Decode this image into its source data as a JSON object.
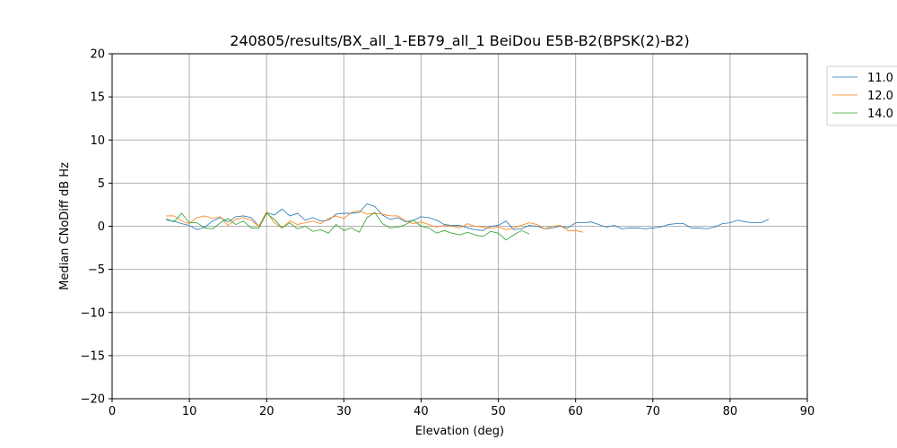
{
  "chart_data": {
    "type": "line",
    "title": "240805/results/BX_all_1-EB79_all_1 BeiDou E5B-B2(BPSK(2)-B2)",
    "xlabel": "Elevation (deg)",
    "ylabel": "Median CNoDiff dB Hz",
    "xlim": [
      0,
      90
    ],
    "ylim": [
      -20,
      20
    ],
    "xticks": [
      0,
      10,
      20,
      30,
      40,
      50,
      60,
      70,
      80,
      90
    ],
    "yticks": [
      -20,
      -15,
      -10,
      -5,
      0,
      5,
      10,
      15,
      20
    ],
    "grid": true,
    "legend_position": "outside-top-right",
    "series": [
      {
        "name": "11.0",
        "color": "#1f77b4",
        "x": [
          7,
          8,
          9,
          10,
          11,
          12,
          13,
          14,
          15,
          16,
          17,
          18,
          19,
          20,
          21,
          22,
          23,
          24,
          25,
          26,
          27,
          28,
          29,
          30,
          31,
          32,
          33,
          34,
          35,
          36,
          37,
          38,
          39,
          40,
          41,
          42,
          43,
          44,
          45,
          46,
          47,
          48,
          49,
          50,
          51,
          52,
          53,
          54,
          55,
          56,
          57,
          58,
          59,
          60,
          61,
          62,
          63,
          64,
          65,
          66,
          67,
          68,
          69,
          70,
          71,
          72,
          73,
          74,
          75,
          76,
          77,
          78,
          79,
          80,
          81,
          82,
          83,
          84,
          85
        ],
        "y": [
          0.7,
          0.6,
          0.3,
          0.1,
          -0.4,
          -0.1,
          0.6,
          1.0,
          0.5,
          1.1,
          1.2,
          1.0,
          0.0,
          1.6,
          1.3,
          2.0,
          1.2,
          1.5,
          0.7,
          1.0,
          0.6,
          0.7,
          1.4,
          1.5,
          1.5,
          1.6,
          2.6,
          2.3,
          1.3,
          0.8,
          1.0,
          0.5,
          0.7,
          1.1,
          1.0,
          0.7,
          0.2,
          0.1,
          0.1,
          -0.2,
          -0.4,
          -0.5,
          0.0,
          0.1,
          0.6,
          -0.4,
          -0.3,
          0.1,
          0.0,
          -0.3,
          -0.2,
          0.0,
          -0.2,
          0.4,
          0.4,
          0.5,
          0.2,
          -0.1,
          0.1,
          -0.3,
          -0.2,
          -0.2,
          -0.3,
          -0.2,
          -0.1,
          0.2,
          0.3,
          0.3,
          -0.2,
          -0.2,
          -0.3,
          -0.1,
          0.3,
          0.4,
          0.7,
          0.5,
          0.4,
          0.4,
          0.8
        ]
      },
      {
        "name": "12.0",
        "color": "#ff7f0e",
        "x": [
          7,
          8,
          9,
          10,
          11,
          12,
          13,
          14,
          15,
          16,
          17,
          18,
          19,
          20,
          21,
          22,
          23,
          24,
          25,
          26,
          27,
          28,
          29,
          30,
          31,
          32,
          33,
          34,
          35,
          36,
          37,
          38,
          39,
          40,
          41,
          42,
          43,
          44,
          45,
          46,
          47,
          48,
          49,
          50,
          51,
          52,
          53,
          54,
          55,
          56,
          57,
          58,
          59,
          60,
          61
        ],
        "y": [
          1.2,
          1.2,
          0.6,
          0.3,
          1.0,
          1.2,
          0.9,
          1.1,
          0.1,
          0.8,
          1.0,
          0.7,
          0.0,
          1.7,
          0.4,
          -0.2,
          0.6,
          0.2,
          0.4,
          0.6,
          0.3,
          0.9,
          1.2,
          0.9,
          1.6,
          1.8,
          1.4,
          1.5,
          1.4,
          1.2,
          1.2,
          0.6,
          0.3,
          0.5,
          0.2,
          -0.1,
          0.1,
          0.0,
          -0.2,
          0.3,
          0.0,
          -0.1,
          -0.2,
          -0.1,
          -0.4,
          -0.2,
          0.1,
          0.4,
          0.2,
          -0.3,
          0.0,
          0.1,
          -0.5,
          -0.5,
          -0.7
        ]
      },
      {
        "name": "14.0",
        "color": "#2ca02c",
        "x": [
          7,
          8,
          9,
          10,
          11,
          12,
          13,
          14,
          15,
          16,
          17,
          18,
          19,
          20,
          21,
          22,
          23,
          24,
          25,
          26,
          27,
          28,
          29,
          30,
          31,
          32,
          33,
          34,
          35,
          36,
          37,
          38,
          39,
          40,
          41,
          42,
          43,
          44,
          45,
          46,
          47,
          48,
          49,
          50,
          51,
          52,
          53,
          54
        ],
        "y": [
          0.9,
          0.5,
          1.5,
          0.4,
          0.4,
          -0.2,
          -0.3,
          0.4,
          0.9,
          0.2,
          0.6,
          -0.2,
          -0.2,
          1.5,
          0.8,
          -0.2,
          0.4,
          -0.3,
          0.0,
          -0.6,
          -0.4,
          -0.8,
          0.2,
          -0.5,
          -0.2,
          -0.7,
          1.0,
          1.6,
          0.3,
          -0.2,
          -0.1,
          0.2,
          0.7,
          0.0,
          -0.2,
          -0.8,
          -0.5,
          -0.8,
          -1.0,
          -0.7,
          -1.0,
          -1.2,
          -0.6,
          -0.8,
          -1.6,
          -1.0,
          -0.5,
          -0.9
        ]
      }
    ]
  }
}
